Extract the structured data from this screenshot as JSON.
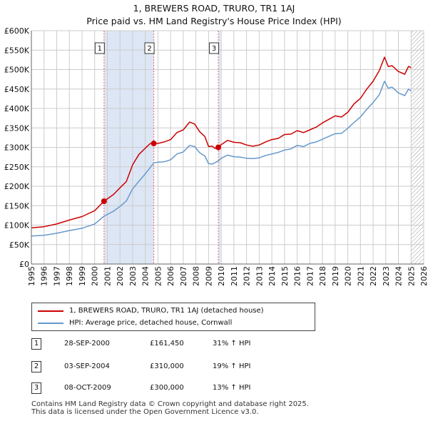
{
  "title_line1": "1, BREWERS ROAD, TRURO, TR1 1AJ",
  "title_line2": "Price paid vs. HM Land Registry's House Price Index (HPI)",
  "colors": {
    "property": "#cc0000",
    "hpi": "#6699cc",
    "shade": "#dde6f5",
    "grid": "#cccccc",
    "marker_line": "#ee6666"
  },
  "legend": {
    "property_label": "1, BREWERS ROAD, TRURO, TR1 1AJ (detached house)",
    "hpi_label": "HPI: Average price, detached house, Cornwall"
  },
  "transactions": [
    {
      "num": "1",
      "date": "28-SEP-2000",
      "price": "£161,450",
      "hpi": "31% ↑ HPI"
    },
    {
      "num": "2",
      "date": "03-SEP-2004",
      "price": "£310,000",
      "hpi": "19% ↑ HPI"
    },
    {
      "num": "3",
      "date": "08-OCT-2009",
      "price": "£300,000",
      "hpi": "13% ↑ HPI"
    }
  ],
  "footer": {
    "line1": "Contains HM Land Registry data © Crown copyright and database right 2025.",
    "line2": "This data is licensed under the Open Government Licence v3.0."
  },
  "chart_data": {
    "type": "line",
    "title": "1, BREWERS ROAD, TRURO, TR1 1AJ",
    "subtitle": "Price paid vs. HM Land Registry's House Price Index (HPI)",
    "xlabel": "",
    "ylabel": "",
    "xlim": [
      1995,
      2026
    ],
    "ylim": [
      0,
      600000
    ],
    "y_ticks": [
      0,
      50000,
      100000,
      150000,
      200000,
      250000,
      300000,
      350000,
      400000,
      450000,
      500000,
      550000,
      600000
    ],
    "y_tick_labels": [
      "£0",
      "£50K",
      "£100K",
      "£150K",
      "£200K",
      "£250K",
      "£300K",
      "£350K",
      "£400K",
      "£450K",
      "£500K",
      "£550K",
      "£600K"
    ],
    "x_ticks": [
      1995,
      1996,
      1997,
      1998,
      1999,
      2000,
      2001,
      2002,
      2003,
      2004,
      2005,
      2006,
      2007,
      2008,
      2009,
      2010,
      2011,
      2012,
      2013,
      2014,
      2015,
      2016,
      2017,
      2018,
      2019,
      2020,
      2021,
      2022,
      2023,
      2024,
      2025,
      2026
    ],
    "x_tick_labels": [
      "1995",
      "1996",
      "1997",
      "1998",
      "1999",
      "2000",
      "2001",
      "2002",
      "2003",
      "2004",
      "2005",
      "2006",
      "2007",
      "2008",
      "2009",
      "2010",
      "2011",
      "2012",
      "2013",
      "2014",
      "2015",
      "2016",
      "2017",
      "2018",
      "2019",
      "2020",
      "2021",
      "2022",
      "2023",
      "2024",
      "2025",
      "2026"
    ],
    "grid": true,
    "shaded_regions": [
      {
        "from": 2000.74,
        "to": 2004.67
      },
      {
        "from": 2009.77,
        "to": 2009.95
      }
    ],
    "future_hatch_from": 2025.0,
    "sale_markers": [
      {
        "label": "1",
        "x": 2000.74,
        "y": 161450
      },
      {
        "label": "2",
        "x": 2004.67,
        "y": 310000
      },
      {
        "label": "3",
        "x": 2009.77,
        "y": 300000
      }
    ],
    "series": [
      {
        "name": "1, BREWERS ROAD, TRURO, TR1 1AJ (detached house)",
        "color": "#cc0000",
        "x": [
          1995.0,
          1996.0,
          1997.0,
          1998.0,
          1999.0,
          2000.0,
          2000.74,
          2001.5,
          2002.0,
          2002.5,
          2003.0,
          2003.5,
          2004.0,
          2004.4,
          2004.67,
          2005.0,
          2005.5,
          2006.0,
          2006.5,
          2007.0,
          2007.5,
          2007.9,
          2008.3,
          2008.7,
          2009.0,
          2009.3,
          2009.5,
          2009.77,
          2010.0,
          2010.5,
          2011.0,
          2011.5,
          2012.0,
          2012.5,
          2013.0,
          2013.5,
          2014.0,
          2014.5,
          2015.0,
          2015.5,
          2016.0,
          2016.5,
          2017.0,
          2017.5,
          2018.0,
          2018.5,
          2019.0,
          2019.5,
          2020.0,
          2020.5,
          2021.0,
          2021.5,
          2022.0,
          2022.5,
          2022.9,
          2023.2,
          2023.5,
          2024.0,
          2024.5,
          2024.8,
          2025.0
        ],
        "y": [
          93000,
          96000,
          103000,
          113000,
          122000,
          137000,
          161450,
          179000,
          196000,
          212000,
          255000,
          282000,
          298000,
          310000,
          310000,
          310000,
          314000,
          320000,
          338000,
          345000,
          365000,
          360000,
          340000,
          328000,
          302000,
          303000,
          297000,
          300000,
          307000,
          318000,
          313000,
          312000,
          306000,
          303000,
          306000,
          314000,
          320000,
          323000,
          333000,
          334000,
          343000,
          338000,
          345000,
          352000,
          363000,
          372000,
          381000,
          378000,
          390000,
          412000,
          426000,
          450000,
          470000,
          498000,
          532000,
          508000,
          510000,
          495000,
          488000,
          508000,
          505000
        ]
      },
      {
        "name": "HPI: Average price, detached house, Cornwall",
        "color": "#6699cc",
        "x": [
          1995.0,
          1996.0,
          1997.0,
          1998.0,
          1999.0,
          2000.0,
          2000.74,
          2001.5,
          2002.0,
          2002.5,
          2003.0,
          2003.5,
          2004.0,
          2004.67,
          2005.0,
          2005.5,
          2006.0,
          2006.5,
          2007.0,
          2007.5,
          2007.9,
          2008.3,
          2008.7,
          2009.0,
          2009.3,
          2009.77,
          2010.0,
          2010.5,
          2011.0,
          2011.5,
          2012.0,
          2012.5,
          2013.0,
          2013.5,
          2014.0,
          2014.5,
          2015.0,
          2015.5,
          2016.0,
          2016.5,
          2017.0,
          2017.5,
          2018.0,
          2018.5,
          2019.0,
          2019.5,
          2020.0,
          2020.5,
          2021.0,
          2021.5,
          2022.0,
          2022.5,
          2022.9,
          2023.2,
          2023.5,
          2024.0,
          2024.5,
          2024.8,
          2025.0
        ],
        "y": [
          72000,
          74000,
          79000,
          86000,
          92000,
          103000,
          123000,
          136000,
          148000,
          162000,
          193000,
          213000,
          232000,
          260000,
          262000,
          263000,
          268000,
          283000,
          288000,
          305000,
          302000,
          286000,
          278000,
          258000,
          257000,
          265000,
          272000,
          280000,
          276000,
          275000,
          272000,
          271000,
          273000,
          279000,
          283000,
          287000,
          293000,
          296000,
          305000,
          302000,
          310000,
          314000,
          321000,
          328000,
          335000,
          336000,
          349000,
          364000,
          378000,
          398000,
          415000,
          436000,
          470000,
          452000,
          455000,
          440000,
          433000,
          450000,
          445000
        ]
      }
    ]
  }
}
